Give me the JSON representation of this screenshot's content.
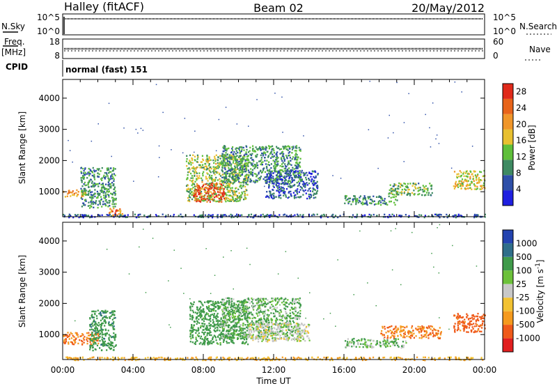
{
  "header": {
    "station": "Halley (fitACF)",
    "beam": "Beam 02",
    "date": "20/May/2012"
  },
  "top_panels": {
    "nsky_label": "N.Sky",
    "nsky_ticks": [
      "10^5",
      "10^0"
    ],
    "nsearch_label": "N.Search",
    "nsearch_ticks": [
      "10^5",
      "10^0"
    ],
    "freq_label": "Freq.",
    "freq_unit": "[MHz]",
    "freq_ticks": [
      "18",
      "8"
    ],
    "nave_label": "Nave",
    "nave_ticks": [
      "60",
      "0"
    ],
    "cpid_label": "CPID",
    "cpid_value": "normal (fast) 151"
  },
  "colors": {
    "power": [
      "#1f1fe0",
      "#2e4fa8",
      "#3e8a62",
      "#5fbf3a",
      "#e8c030",
      "#f0962a",
      "#e8641a",
      "#e02a1a"
    ],
    "velocity": [
      "#e11f1f",
      "#ef5a1a",
      "#f59a1e",
      "#f2c232",
      "#c8c8c8",
      "#6cc13a",
      "#3f9a4a",
      "#2f6e8a",
      "#2343b0"
    ]
  },
  "chart_data": [
    {
      "type": "heatmap",
      "title": "Power",
      "ylabel": "Slant Range [km]",
      "xlabel": "",
      "xlim": [
        0,
        24
      ],
      "ylim": [
        200,
        4600
      ],
      "yticks": [
        "1000",
        "2000",
        "3000",
        "4000"
      ],
      "colorbar": {
        "label": "Power [dB]",
        "ticks": [
          "4",
          "8",
          "12",
          "16",
          "20",
          "24",
          "28"
        ],
        "range": [
          0,
          30
        ]
      },
      "echo_regions": [
        {
          "t0": 0.0,
          "t1": 1.3,
          "r0": 850,
          "r1": 1100,
          "value": 20
        },
        {
          "t0": 1.0,
          "t1": 3.0,
          "r0": 500,
          "r1": 1800,
          "value": 10
        },
        {
          "t0": 2.6,
          "t1": 3.4,
          "r0": 250,
          "r1": 500,
          "value": 22
        },
        {
          "t0": 7.0,
          "t1": 10.5,
          "r0": 700,
          "r1": 2200,
          "value": 14
        },
        {
          "t0": 7.4,
          "t1": 9.2,
          "r0": 700,
          "r1": 1300,
          "value": 26
        },
        {
          "t0": 9.0,
          "t1": 13.5,
          "r0": 1300,
          "r1": 2500,
          "value": 10
        },
        {
          "t0": 11.5,
          "t1": 14.5,
          "r0": 800,
          "r1": 1700,
          "value": 6
        },
        {
          "t0": 16.0,
          "t1": 19.0,
          "r0": 600,
          "r1": 900,
          "value": 10
        },
        {
          "t0": 18.5,
          "t1": 21.0,
          "r0": 900,
          "r1": 1300,
          "value": 12
        },
        {
          "t0": 22.2,
          "t1": 24.0,
          "r0": 1100,
          "r1": 1700,
          "value": 16
        },
        {
          "t0": 0.0,
          "t1": 24.0,
          "r0": 200,
          "r1": 300,
          "value": 6
        }
      ]
    },
    {
      "type": "heatmap",
      "title": "Velocity",
      "ylabel": "Slant Range [km]",
      "xlabel": "Time UT",
      "xlim": [
        0,
        24
      ],
      "ylim": [
        200,
        4600
      ],
      "xticks": [
        "00:00",
        "04:00",
        "08:00",
        "12:00",
        "16:00",
        "20:00",
        "00:00"
      ],
      "yticks": [
        "1000",
        "2000",
        "3000",
        "4000"
      ],
      "colorbar": {
        "label": "Velocity [m s^-1]",
        "ticks": [
          "1000",
          "500",
          "100",
          "25",
          "-25",
          "-100",
          "-500",
          "-1000"
        ]
      },
      "echo_regions": [
        {
          "t0": 0.0,
          "t1": 2.0,
          "r0": 700,
          "r1": 1100,
          "value": -300
        },
        {
          "t0": 1.5,
          "t1": 3.0,
          "r0": 500,
          "r1": 1800,
          "value": 200
        },
        {
          "t0": 7.2,
          "t1": 10.5,
          "r0": 700,
          "r1": 2100,
          "value": 150
        },
        {
          "t0": 9.0,
          "t1": 13.5,
          "r0": 900,
          "r1": 2200,
          "value": 60
        },
        {
          "t0": 10.5,
          "t1": 14.0,
          "r0": 800,
          "r1": 1400,
          "value": 0
        },
        {
          "t0": 16.0,
          "t1": 19.5,
          "r0": 600,
          "r1": 900,
          "value": 60
        },
        {
          "t0": 18.0,
          "t1": 21.5,
          "r0": 900,
          "r1": 1300,
          "value": -300
        },
        {
          "t0": 22.2,
          "t1": 24.0,
          "r0": 1100,
          "r1": 1700,
          "value": -400
        },
        {
          "t0": 0.0,
          "t1": 24.0,
          "r0": 200,
          "r1": 300,
          "value": -60
        }
      ]
    }
  ]
}
